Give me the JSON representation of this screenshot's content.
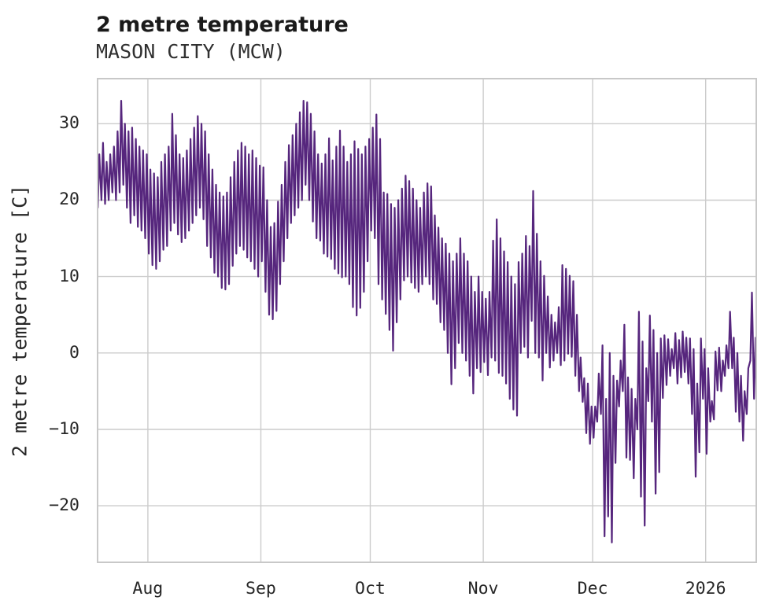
{
  "header": {
    "title": "2 metre temperature",
    "subtitle": "MASON CITY (MCW)"
  },
  "chart_data": {
    "type": "line",
    "title": "2 metre temperature",
    "subtitle": "MASON CITY (MCW)",
    "xlabel": "",
    "ylabel": "2 metre temperature [C]",
    "series_name": "2 metre temperature",
    "line_color": "#56267d",
    "grid_color": "#cccccc",
    "spine_color": "#c8c8c8",
    "text_color": "#262626",
    "grid": "on",
    "legend": "none",
    "ylim": [
      -27.5,
      36
    ],
    "xlim_days": [
      0,
      181.1
    ],
    "yticks": [
      {
        "value": 30,
        "label": "30"
      },
      {
        "value": 20,
        "label": "20"
      },
      {
        "value": 10,
        "label": "10"
      },
      {
        "value": 0,
        "label": "0"
      },
      {
        "value": -10,
        "label": "−10"
      },
      {
        "value": -20,
        "label": "−20"
      }
    ],
    "xticks": [
      {
        "day": 14,
        "label": "Aug"
      },
      {
        "day": 45,
        "label": "Sep"
      },
      {
        "day": 75,
        "label": "Oct"
      },
      {
        "day": 106,
        "label": "Nov"
      },
      {
        "day": 136,
        "label": "Dec"
      },
      {
        "day": 167,
        "label": "2026"
      }
    ],
    "sampling_note": "hourly temperature trace approximated by daily max/min envelope; day 0 = mid-July, axis ticks at month starts",
    "series": [
      {
        "name": "2 metre temperature",
        "daily_max": [
          26,
          27.5,
          25,
          26,
          27,
          29,
          33,
          30,
          29,
          29.5,
          28,
          27,
          26.5,
          26,
          24,
          23.5,
          23,
          25,
          26,
          27,
          31.3,
          28.5,
          26,
          25.5,
          26.5,
          28,
          29.5,
          31,
          30,
          29,
          26,
          24,
          22,
          21,
          20.5,
          21,
          23,
          25,
          26.5,
          27.5,
          27,
          26,
          26.5,
          25.5,
          24.5,
          24.3,
          20,
          16.5,
          17,
          19.8,
          22,
          25,
          27.2,
          28.5,
          30,
          31.5,
          33,
          32.8,
          31.3,
          29,
          26,
          24.8,
          26,
          28.1,
          25.2,
          27,
          29.1,
          27,
          25,
          26,
          27.7,
          26.7,
          26,
          27,
          28,
          29.5,
          31.2,
          28,
          21,
          20.8,
          19.5,
          19,
          20,
          21.5,
          23.2,
          22.5,
          21.5,
          20,
          19,
          21,
          22.2,
          21.8,
          18,
          16.4,
          15,
          14.3,
          13,
          12,
          13,
          15,
          13,
          12,
          10,
          8,
          10,
          8,
          7.1,
          8,
          14.7,
          17.5,
          15,
          13.3,
          11.9,
          10,
          9,
          11.9,
          13,
          15.3,
          14,
          21.2,
          15.6,
          12,
          10.1,
          7.4,
          5,
          4,
          6,
          11.5,
          11,
          10.1,
          9.4,
          5,
          -0.6,
          -3.3,
          -4,
          -7,
          -7,
          -2.7,
          1,
          -6,
          0,
          -3,
          -3.6,
          -1,
          3.7,
          -3.2,
          -4.7,
          -6,
          5.4,
          1.5,
          -2,
          4.9,
          3,
          0,
          1.9,
          2.3,
          1.8,
          0.5,
          2.6,
          1.7,
          2.8,
          2,
          1.9,
          0.5,
          -4,
          1.9,
          0.5,
          -2,
          -6.3,
          0.2,
          0.7,
          -1,
          1,
          5.4,
          2,
          0,
          -3,
          -5,
          -2,
          7.9,
          2,
          -2
        ],
        "daily_min": [
          19,
          20,
          19.5,
          20,
          21,
          20,
          21,
          22,
          19,
          17,
          18,
          16.5,
          16,
          15,
          13,
          11.5,
          11,
          12,
          13.5,
          14,
          16,
          17,
          15.5,
          14.5,
          15,
          16,
          17,
          18,
          19,
          17.5,
          14,
          12.5,
          10.5,
          10,
          8.5,
          8.3,
          9,
          11.4,
          13,
          14,
          13.5,
          12.5,
          12,
          11,
          10,
          12,
          8,
          5,
          4.4,
          5.5,
          9,
          12,
          15,
          17,
          18,
          19,
          20,
          22,
          20,
          17.2,
          15,
          14.7,
          13,
          12.6,
          12.3,
          11,
          10.4,
          9.9,
          10,
          9,
          6,
          4.9,
          5.9,
          8,
          12,
          16,
          15,
          9,
          7,
          5.1,
          3,
          0.3,
          4,
          7,
          9.5,
          10,
          9.2,
          8.5,
          8,
          9,
          10,
          9,
          7,
          6.4,
          4,
          3,
          0,
          -4.1,
          -2,
          1.3,
          0,
          -1,
          -3,
          -5.3,
          -2,
          -2.5,
          -1.2,
          -2.9,
          -0.6,
          -1,
          -2.6,
          -3,
          -4,
          -6,
          -7.4,
          -8.2,
          0,
          0.8,
          -0.6,
          4.2,
          0,
          -0.6,
          -3.6,
          0,
          -1.9,
          -1,
          0,
          -1.6,
          -1,
          -0.1,
          -0.5,
          -3,
          -5,
          -6.4,
          -10.5,
          -11.9,
          -11.1,
          -9,
          -8,
          -24,
          -21.4,
          -24.8,
          -14.4,
          -7,
          -5,
          -13.7,
          -14,
          -16.4,
          -10,
          -18.8,
          -22.6,
          -6.3,
          -9,
          -18.4,
          -15.6,
          -5.9,
          -4.2,
          -3,
          -2,
          -4,
          -3.2,
          -2.5,
          -4,
          -8,
          -16.2,
          -13,
          -6,
          -13.2,
          -9,
          -8.7,
          -4.9,
          -5,
          -3,
          -2,
          -2,
          -7.7,
          -9,
          -11.5,
          -8,
          -1,
          -6,
          -8.4
        ]
      }
    ]
  }
}
